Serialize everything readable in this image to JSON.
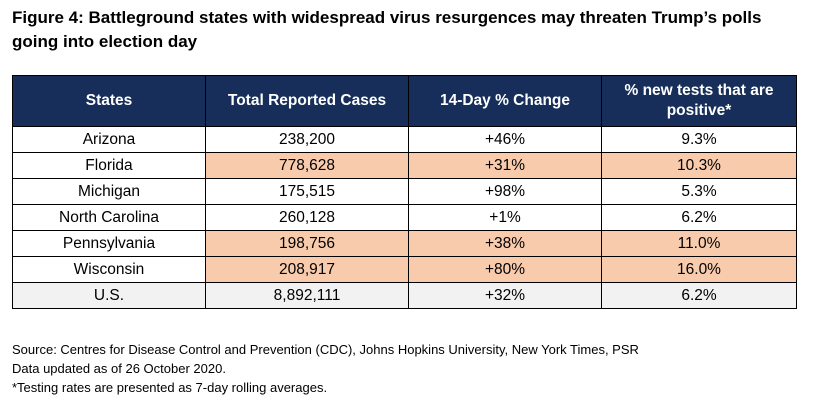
{
  "title": "Figure 4: Battleground states with widespread virus resurgences may threaten Trump’s polls going into election day",
  "chart_data": {
    "type": "table",
    "title": "Figure 4: Battleground states with widespread virus resurgences may threaten Trump’s polls going into election day",
    "columns": [
      "States",
      "Total Reported Cases",
      "14-Day % Change",
      "% new tests that are positive*"
    ],
    "rows": [
      {
        "state": "Arizona",
        "cases": "238,200",
        "change": "+46%",
        "positive": "9.3%",
        "highlight": false
      },
      {
        "state": "Florida",
        "cases": "778,628",
        "change": "+31%",
        "positive": "10.3%",
        "highlight": true
      },
      {
        "state": "Michigan",
        "cases": "175,515",
        "change": "+98%",
        "positive": "5.3%",
        "highlight": false
      },
      {
        "state": "North Carolina",
        "cases": "260,128",
        "change": "+1%",
        "positive": "6.2%",
        "highlight": false
      },
      {
        "state": "Pennsylvania",
        "cases": "198,756",
        "change": "+38%",
        "positive": "11.0%",
        "highlight": true
      },
      {
        "state": "Wisconsin",
        "cases": "208,917",
        "change": "+80%",
        "positive": "16.0%",
        "highlight": true
      }
    ],
    "total": {
      "state": "U.S.",
      "cases": "8,892,111",
      "change": "+32%",
      "positive": "6.2%"
    }
  },
  "colors": {
    "header_bg": "#162e59",
    "header_text": "#ffffff",
    "highlight_bg": "#f8cbad",
    "total_bg": "#f2f2f2"
  },
  "footer": {
    "source": "Source: Centres for Disease Control and Prevention (CDC), Johns Hopkins University, New York Times, PSR",
    "updated": "Data updated as of 26 October 2020.",
    "note": "*Testing rates are presented as 7-day rolling averages."
  }
}
